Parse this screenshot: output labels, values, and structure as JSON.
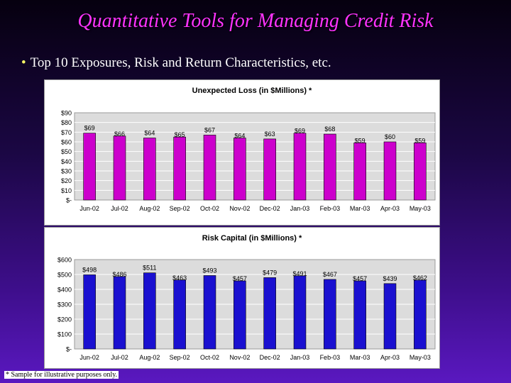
{
  "slide": {
    "title": "Quantitative Tools for Managing Credit Risk",
    "bullet": "Top 10 Exposures, Risk and Return Characteristics, etc.",
    "footnote": "* Sample for illustrative purposes only."
  },
  "colors": {
    "title": "#ff33ff",
    "bullet_marker": "#ffff66",
    "bar_magenta": "#cc00cc",
    "bar_blue": "#1a10d0",
    "plot_bg": "#dcdcdc",
    "grid": "#ffffff"
  },
  "chart_data": [
    {
      "type": "bar",
      "title": "Unexpected Loss (in $Millions) *",
      "categories": [
        "Jun-02",
        "Jul-02",
        "Aug-02",
        "Sep-02",
        "Oct-02",
        "Nov-02",
        "Dec-02",
        "Jan-03",
        "Feb-03",
        "Mar-03",
        "Apr-03",
        "May-03"
      ],
      "values": [
        69,
        66,
        64,
        65,
        67,
        64,
        63,
        69,
        68,
        59,
        60,
        59
      ],
      "data_labels": [
        "$69",
        "$66",
        "$64",
        "$65",
        "$67",
        "$64",
        "$63",
        "$69",
        "$68",
        "$59",
        "$60",
        "$59"
      ],
      "ylim": [
        0,
        90
      ],
      "yticks": [
        0,
        10,
        20,
        30,
        40,
        50,
        60,
        70,
        80,
        90
      ],
      "ytick_labels": [
        "$-",
        "$10",
        "$20",
        "$30",
        "$40",
        "$50",
        "$60",
        "$70",
        "$80",
        "$90"
      ],
      "color": "#cc00cc",
      "grid": true,
      "legend": "none"
    },
    {
      "type": "bar",
      "title": "Risk Capital (in $Millions) *",
      "categories": [
        "Jun-02",
        "Jul-02",
        "Aug-02",
        "Sep-02",
        "Oct-02",
        "Nov-02",
        "Dec-02",
        "Jan-03",
        "Feb-03",
        "Mar-03",
        "Apr-03",
        "May-03"
      ],
      "values": [
        498,
        486,
        511,
        463,
        493,
        457,
        479,
        491,
        467,
        457,
        439,
        462
      ],
      "data_labels": [
        "$498",
        "$486",
        "$511",
        "$463",
        "$493",
        "$457",
        "$479",
        "$491",
        "$467",
        "$457",
        "$439",
        "$462"
      ],
      "ylim": [
        0,
        600
      ],
      "yticks": [
        0,
        100,
        200,
        300,
        400,
        500,
        600
      ],
      "ytick_labels": [
        "$-",
        "$100",
        "$200",
        "$300",
        "$400",
        "$500",
        "$600"
      ],
      "color": "#1a10d0",
      "grid": true,
      "legend": "none"
    }
  ]
}
